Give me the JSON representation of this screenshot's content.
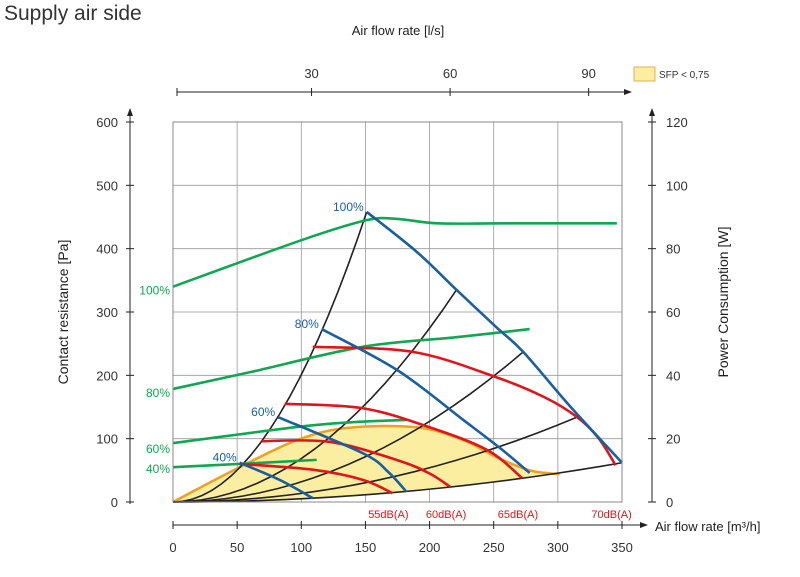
{
  "title": "Supply air side",
  "chart_data": {
    "type": "line",
    "xlabel": "Air flow rate [m³/h]",
    "top_xlabel": "Air flow rate [l/s]",
    "ylabel": "Contact resistance [Pa]",
    "y2label": "Power Consumption [W]",
    "xlim": [
      0,
      350
    ],
    "ylim": [
      0,
      600
    ],
    "y2lim": [
      0,
      120
    ],
    "xticks": [
      0,
      50,
      100,
      150,
      200,
      250,
      300,
      350
    ],
    "yticks": [
      0,
      100,
      200,
      300,
      400,
      500,
      600
    ],
    "y2ticks": [
      0,
      20,
      40,
      60,
      80,
      100,
      120
    ],
    "top_ticks": [
      {
        "label": "30",
        "m3h": 108
      },
      {
        "label": "60",
        "m3h": 216
      },
      {
        "label": "90",
        "m3h": 324
      }
    ],
    "grid": true,
    "legend": {
      "label": "SFP < 0,75",
      "color": "#fbeea0",
      "placement": "top-right"
    },
    "colors": {
      "power": "#12a652",
      "fan": "#1a5fa0",
      "sound": "#e0151b",
      "system": "#222222",
      "sfp_fill": "#fbeea0",
      "sfp_edge": "#f0a020"
    },
    "power_curves": [
      {
        "label": "100%",
        "points": [
          [
            0,
            68
          ],
          [
            101,
            82.8
          ],
          [
            151,
            89
          ],
          [
            175,
            89.4
          ],
          [
            206,
            88
          ],
          [
            260,
            88
          ],
          [
            346,
            88
          ]
        ]
      },
      {
        "label": "80%",
        "points": [
          [
            0,
            35.7
          ],
          [
            60,
            41
          ],
          [
            148,
            49
          ],
          [
            220,
            52
          ],
          [
            278,
            54.6
          ]
        ]
      },
      {
        "label": "60%",
        "points": [
          [
            0,
            18.6
          ],
          [
            97,
            23.7
          ],
          [
            140,
            25.2
          ],
          [
            182,
            25.9
          ]
        ]
      },
      {
        "label": "40%",
        "points": [
          [
            0,
            11
          ],
          [
            60,
            12.2
          ],
          [
            112,
            13.3
          ]
        ]
      }
    ],
    "fan_curves": [
      {
        "label": "100%",
        "points": [
          [
            151,
            458
          ],
          [
            190,
            395
          ],
          [
            221,
            335
          ],
          [
            252,
            276
          ],
          [
            273,
            237
          ],
          [
            310,
            150
          ],
          [
            350,
            62
          ]
        ]
      },
      {
        "label": "80%",
        "points": [
          [
            116,
            273
          ],
          [
            175,
            208
          ],
          [
            226,
            130
          ],
          [
            255,
            85
          ],
          [
            278,
            46
          ]
        ]
      },
      {
        "label": "60%",
        "points": [
          [
            82,
            134
          ],
          [
            148,
            77
          ],
          [
            168,
            47
          ],
          [
            182,
            16
          ]
        ]
      },
      {
        "label": "40%",
        "points": [
          [
            52,
            62
          ],
          [
            83,
            35
          ],
          [
            109,
            6
          ]
        ]
      }
    ],
    "sound_curves": [
      {
        "label": "70dB(A)",
        "points": [
          [
            109,
            245
          ],
          [
            187,
            237
          ],
          [
            252,
            197
          ],
          [
            290,
            165
          ],
          [
            315,
            134
          ],
          [
            332,
            100
          ],
          [
            345,
            58
          ]
        ]
      },
      {
        "label": "65dB(A)",
        "points": [
          [
            87,
            155
          ],
          [
            148,
            148
          ],
          [
            200,
            118
          ],
          [
            245,
            82
          ],
          [
            272,
            38
          ]
        ]
      },
      {
        "label": "60dB(A)",
        "points": [
          [
            69,
            96
          ],
          [
            122,
            95
          ],
          [
            175,
            66
          ],
          [
            200,
            45
          ],
          [
            216,
            24
          ]
        ]
      },
      {
        "label": "55dB(A)",
        "points": [
          [
            52,
            60
          ],
          [
            109,
            51
          ],
          [
            148,
            35
          ],
          [
            171,
            14
          ]
        ]
      }
    ],
    "system_curve_endpoints": [
      [
        151,
        458
      ],
      [
        221,
        335
      ],
      [
        273,
        237
      ],
      [
        315,
        134
      ],
      [
        350,
        62
      ]
    ],
    "sfp_area_upper": [
      [
        0,
        0
      ],
      [
        52,
        55
      ],
      [
        97,
        98
      ],
      [
        136,
        117
      ],
      [
        190,
        118
      ],
      [
        226,
        98
      ],
      [
        252,
        71
      ],
      [
        278,
        50
      ],
      [
        295,
        45
      ]
    ]
  }
}
